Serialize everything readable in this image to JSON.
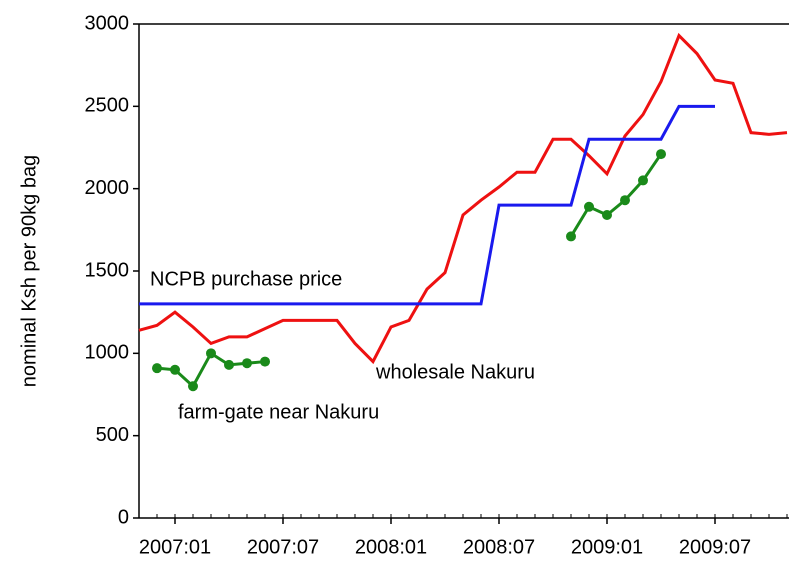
{
  "chart_data": {
    "type": "line",
    "y_label": "nominal Ksh per 90kg bag",
    "categories": [
      null,
      null,
      "2007:01",
      null,
      null,
      null,
      null,
      null,
      "2007:07",
      null,
      null,
      null,
      null,
      null,
      "2008:01",
      null,
      null,
      null,
      null,
      null,
      "2008:07",
      null,
      null,
      null,
      null,
      null,
      "2009:01",
      null,
      null,
      null,
      null,
      null,
      "2009:07",
      null,
      null,
      null,
      null
    ],
    "series": [
      {
        "name": "wholesale Nakuru",
        "color": "#ee1111",
        "markers": false,
        "values": [
          1140,
          1170,
          1250,
          1160,
          1060,
          1100,
          1100,
          1150,
          1200,
          1200,
          1200,
          1200,
          1060,
          950,
          1160,
          1200,
          1390,
          1490,
          1840,
          1930,
          2010,
          2100,
          2100,
          2300,
          2300,
          2200,
          2090,
          2320,
          2450,
          2650,
          2930,
          2820,
          2660,
          2640,
          2340,
          2330,
          2340
        ]
      },
      {
        "name": "NCPB purchase price",
        "color": "#1a1aee",
        "markers": false,
        "values": [
          1300,
          1300,
          1300,
          1300,
          1300,
          1300,
          1300,
          1300,
          1300,
          1300,
          1300,
          1300,
          1300,
          1300,
          1300,
          1300,
          1300,
          1300,
          1300,
          1300,
          1900,
          1900,
          1900,
          1900,
          1900,
          2300,
          2300,
          2300,
          2300,
          2300,
          2500,
          2500,
          2500,
          null,
          null,
          null,
          null
        ]
      },
      {
        "name": "farm-gate near Nakuru",
        "color": "#1a8a1a",
        "markers": true,
        "values": [
          null,
          910,
          900,
          800,
          1000,
          930,
          940,
          950,
          null,
          null,
          null,
          null,
          null,
          null,
          null,
          null,
          null,
          null,
          null,
          null,
          null,
          null,
          null,
          null,
          1710,
          1890,
          1840,
          1930,
          2050,
          2210,
          null,
          null,
          null,
          null,
          null,
          null,
          null
        ]
      }
    ],
    "ylim": [
      0,
      3000
    ],
    "yticks": [
      0,
      500,
      1000,
      1500,
      2000,
      2500,
      3000
    ]
  }
}
